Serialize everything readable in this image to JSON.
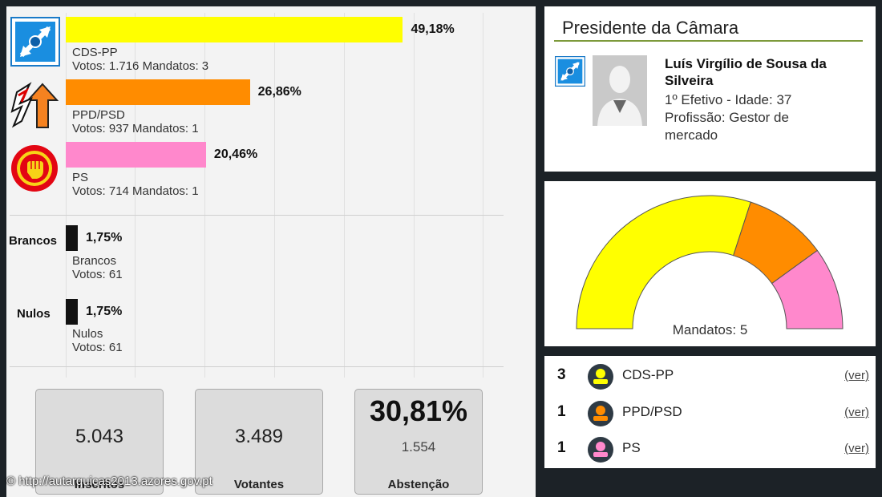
{
  "chart_data": [
    {
      "type": "bar",
      "orientation": "horizontal",
      "categories": [
        "CDS-PP",
        "PPD/PSD",
        "PS",
        "Brancos",
        "Nulos"
      ],
      "values": [
        49.18,
        26.86,
        20.46,
        1.75,
        1.75
      ],
      "value_labels": [
        "49,18%",
        "26,86%",
        "20,46%",
        "1,75%",
        "1,75%"
      ],
      "colors": [
        "#ffff00",
        "#ff8c00",
        "#ff88cc",
        "#111111",
        "#111111"
      ],
      "parties": [
        {
          "name": "CDS-PP",
          "details": "Votos: 1.716 Mandatos: 3"
        },
        {
          "name": "PPD/PSD",
          "details": "Votos: 937 Mandatos: 1"
        },
        {
          "name": "PS",
          "details": "Votos: 714 Mandatos: 1"
        }
      ],
      "others": [
        {
          "side_label": "Brancos",
          "name": "Brancos",
          "details": "Votos: 61"
        },
        {
          "side_label": "Nulos",
          "name": "Nulos",
          "details": "Votos: 61"
        }
      ],
      "xlim": [
        0,
        100
      ],
      "grid": true
    },
    {
      "type": "pie",
      "variant": "semicircle",
      "categories": [
        "CDS-PP",
        "PPD/PSD",
        "PS"
      ],
      "values": [
        3,
        1,
        1
      ],
      "colors": [
        "#ffff00",
        "#ff8c00",
        "#ff88cc"
      ],
      "label": "Mandatos: 5"
    }
  ],
  "stats": [
    {
      "value": "5.043",
      "label": "Inscritos"
    },
    {
      "value": "3.489",
      "label": "Votantes"
    },
    {
      "value": "30,81%",
      "sub": "1.554",
      "label": "Abstenção"
    }
  ],
  "president": {
    "title": "Presidente da Câmara",
    "name": "Luís Virgílio de Sousa da Silveira",
    "line1": "1º Efetivo - Idade: 37",
    "line2": "Profissão: Gestor de",
    "line3": "mercado"
  },
  "legend": [
    {
      "count": "3",
      "name": "CDS-PP",
      "link": "(ver)",
      "color": "#ffff00"
    },
    {
      "count": "1",
      "name": "PPD/PSD",
      "link": "(ver)",
      "color": "#ff8c00"
    },
    {
      "count": "1",
      "name": "PS",
      "link": "(ver)",
      "color": "#ff88cc"
    }
  ],
  "watermark": "© http://autarquicas2013.azores.gov.pt"
}
